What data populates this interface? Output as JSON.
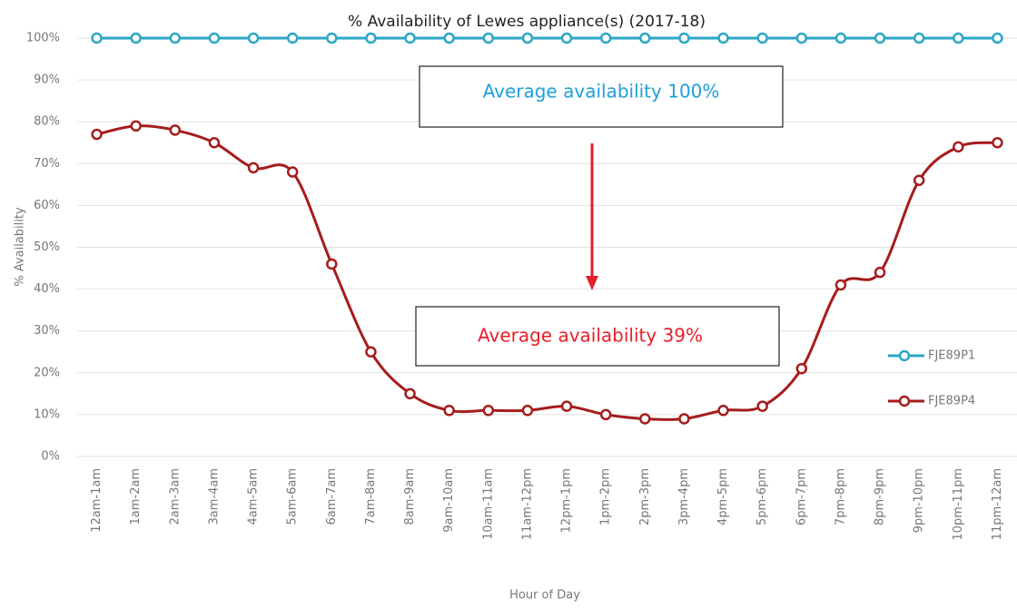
{
  "chart_data": {
    "type": "line",
    "title": "% Availability of Lewes appliance(s) (2017-18)",
    "x_label": "Hour of Day",
    "y_label": "% Availability",
    "categories": [
      "12am-1am",
      "1am-2am",
      "2am-3am",
      "3am-4am",
      "4am-5am",
      "5am-6am",
      "6am-7am",
      "7am-8am",
      "8am-9am",
      "9am-10am",
      "10am-11am",
      "11am-12pm",
      "12pm-1pm",
      "1pm-2pm",
      "2pm-3pm",
      "3pm-4pm",
      "4pm-5pm",
      "5pm-6pm",
      "6pm-7pm",
      "7pm-8pm",
      "8pm-9pm",
      "9pm-10pm",
      "10pm-11pm",
      "11pm-12am"
    ],
    "series": [
      {
        "name": "FJE89P1",
        "color": "#2aa7c4",
        "values": [
          100,
          100,
          100,
          100,
          100,
          100,
          100,
          100,
          100,
          100,
          100,
          100,
          100,
          100,
          100,
          100,
          100,
          100,
          100,
          100,
          100,
          100,
          100,
          100
        ]
      },
      {
        "name": "FJE89P4",
        "color": "#a61c1c",
        "values": [
          77,
          79,
          78,
          75,
          69,
          68,
          46,
          25,
          15,
          11,
          11,
          11,
          12,
          10,
          9,
          9,
          11,
          12,
          21,
          41,
          44,
          66,
          74,
          75
        ]
      }
    ],
    "ylim": [
      0,
      100
    ],
    "yticks": [
      {
        "value": 0,
        "label": "0%"
      },
      {
        "value": 10,
        "label": "10%"
      },
      {
        "value": 20,
        "label": "20%"
      },
      {
        "value": 30,
        "label": "30%"
      },
      {
        "value": 40,
        "label": "40%"
      },
      {
        "value": 50,
        "label": "50%"
      },
      {
        "value": 60,
        "label": "60%"
      },
      {
        "value": 70,
        "label": "70%"
      },
      {
        "value": 80,
        "label": "80%"
      },
      {
        "value": 90,
        "label": "90%"
      },
      {
        "value": 100,
        "label": "100%"
      }
    ],
    "grid": true,
    "legend": "right",
    "annotations": [
      {
        "text": "Average availability 100%",
        "color": "#1ea0d8"
      },
      {
        "text": "Average availability 39%",
        "color": "#e8202a"
      }
    ]
  }
}
